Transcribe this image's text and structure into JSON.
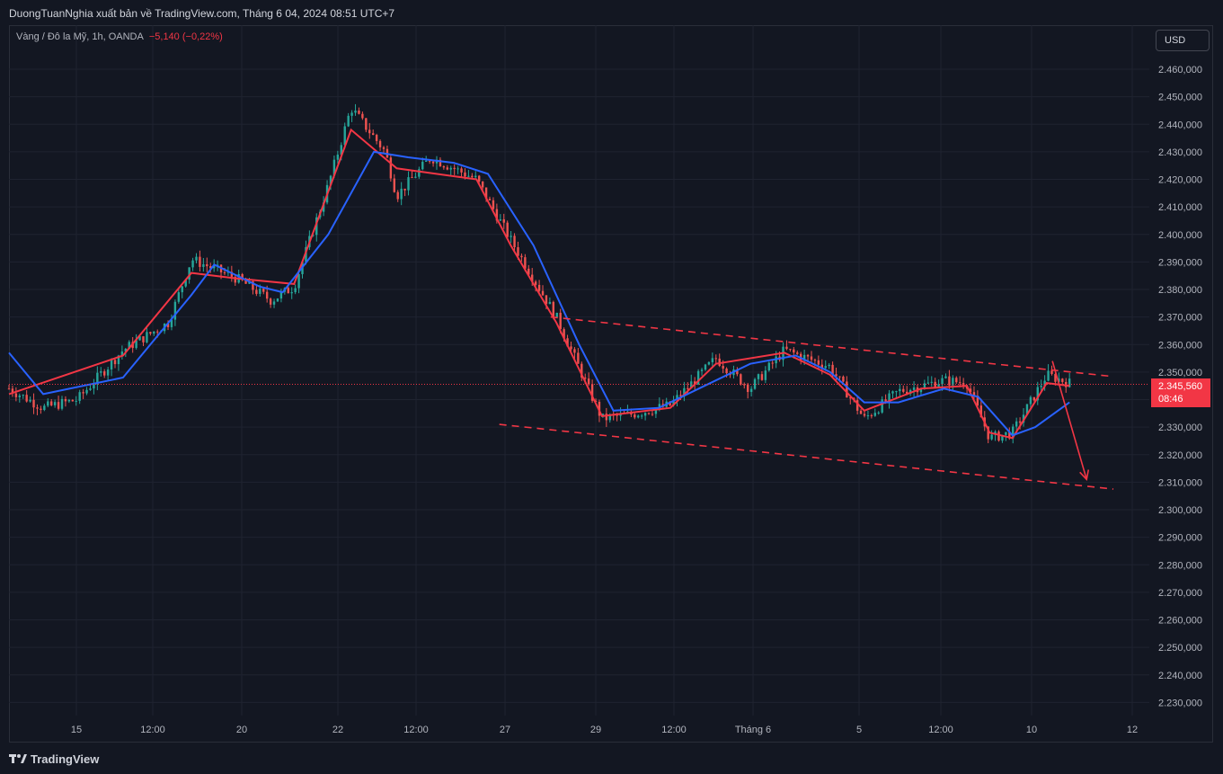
{
  "header": {
    "publisher": "DuongTuanNghia xuất bản về TradingView.com, Tháng 6 04, 2024 08:51 UTC+7"
  },
  "symbol": {
    "name": "Vàng / Đô la Mỹ, 1h, OANDA",
    "change": "−5,140 (−0,22%)"
  },
  "currency": "USD",
  "last_price": {
    "value": "2.345,560",
    "countdown": "08:46",
    "color": "#f23645"
  },
  "footer": {
    "brand": "TradingView"
  },
  "colors": {
    "background": "#131722",
    "up": "#26a69a",
    "down": "#ef5350",
    "ema_fast": "#f23645",
    "ema_slow": "#2962ff",
    "trendline": "#f23645"
  },
  "chart_data": {
    "type": "candlestick",
    "title": "Vàng / Đô la Mỹ, 1h, OANDA",
    "ylim": [
      2225000,
      2465000
    ],
    "y_ticks": [
      "2.460,000",
      "2.450,000",
      "2.440,000",
      "2.430,000",
      "2.420,000",
      "2.410,000",
      "2.400,000",
      "2.390,000",
      "2.380,000",
      "2.370,000",
      "2.360,000",
      "2.350,000",
      "2.340,000",
      "2.330,000",
      "2.320,000",
      "2.310,000",
      "2.300,000",
      "2.290,000",
      "2.280,000",
      "2.270,000",
      "2.260,000",
      "2.250,000",
      "2.240,000",
      "2.230,000"
    ],
    "x_ticks": [
      "15",
      "12:00",
      "20",
      "22",
      "12:00",
      "27",
      "29",
      "12:00",
      "Tháng 6",
      "5",
      "12:00",
      "10",
      "12"
    ],
    "price_path": [
      [
        0,
        2344
      ],
      [
        0.03,
        2337
      ],
      [
        0.06,
        2340
      ],
      [
        0.1,
        2358
      ],
      [
        0.14,
        2368
      ],
      [
        0.16,
        2391
      ],
      [
        0.2,
        2384
      ],
      [
        0.23,
        2376
      ],
      [
        0.25,
        2381
      ],
      [
        0.28,
        2418
      ],
      [
        0.3,
        2446
      ],
      [
        0.33,
        2430
      ],
      [
        0.34,
        2414
      ],
      [
        0.37,
        2428
      ],
      [
        0.41,
        2420
      ],
      [
        0.44,
        2398
      ],
      [
        0.48,
        2370
      ],
      [
        0.52,
        2333
      ],
      [
        0.55,
        2335
      ],
      [
        0.58,
        2338
      ],
      [
        0.62,
        2355
      ],
      [
        0.65,
        2344
      ],
      [
        0.68,
        2358
      ],
      [
        0.72,
        2352
      ],
      [
        0.75,
        2333
      ],
      [
        0.78,
        2343
      ],
      [
        0.82,
        2347
      ],
      [
        0.84,
        2346
      ],
      [
        0.86,
        2326
      ],
      [
        0.88,
        2328
      ],
      [
        0.91,
        2349
      ],
      [
        0.93,
        2346
      ]
    ],
    "series": [
      {
        "name": "",
        "kind": "ema_fast",
        "points": [
          [
            0,
            2342
          ],
          [
            0.1,
            2356
          ],
          [
            0.16,
            2386
          ],
          [
            0.2,
            2384
          ],
          [
            0.25,
            2382
          ],
          [
            0.3,
            2438
          ],
          [
            0.34,
            2424
          ],
          [
            0.41,
            2420
          ],
          [
            0.44,
            2396
          ],
          [
            0.48,
            2368
          ],
          [
            0.52,
            2334
          ],
          [
            0.58,
            2337
          ],
          [
            0.62,
            2353
          ],
          [
            0.68,
            2357
          ],
          [
            0.72,
            2349
          ],
          [
            0.75,
            2336
          ],
          [
            0.8,
            2344
          ],
          [
            0.84,
            2345
          ],
          [
            0.86,
            2328
          ],
          [
            0.88,
            2326
          ],
          [
            0.91,
            2346
          ],
          [
            0.93,
            2345
          ]
        ]
      },
      {
        "name": "",
        "kind": "ema_slow",
        "points": [
          [
            0,
            2357
          ],
          [
            0.03,
            2342
          ],
          [
            0.1,
            2348
          ],
          [
            0.16,
            2378
          ],
          [
            0.18,
            2389
          ],
          [
            0.22,
            2381
          ],
          [
            0.24,
            2379
          ],
          [
            0.28,
            2400
          ],
          [
            0.32,
            2430
          ],
          [
            0.35,
            2428
          ],
          [
            0.39,
            2426
          ],
          [
            0.42,
            2422
          ],
          [
            0.46,
            2396
          ],
          [
            0.5,
            2360
          ],
          [
            0.53,
            2336
          ],
          [
            0.57,
            2337
          ],
          [
            0.61,
            2345
          ],
          [
            0.65,
            2353
          ],
          [
            0.69,
            2356
          ],
          [
            0.72,
            2350
          ],
          [
            0.75,
            2339
          ],
          [
            0.78,
            2339
          ],
          [
            0.82,
            2344
          ],
          [
            0.85,
            2341
          ],
          [
            0.88,
            2327
          ],
          [
            0.9,
            2330
          ],
          [
            0.93,
            2339
          ]
        ]
      }
    ],
    "trendlines": [
      {
        "style": "dashed",
        "points": [
          [
            2370,
            0.475
          ],
          [
            2347,
            1.0
          ]
        ]
      },
      {
        "style": "dashed",
        "points": [
          [
            2331,
            0.43
          ],
          [
            2306,
            1.0
          ]
        ]
      },
      {
        "style": "arrow",
        "points": [
          [
            2354,
            0.915
          ],
          [
            2311,
            0.945
          ]
        ]
      }
    ],
    "last_price": 2345560,
    "grid": true
  }
}
